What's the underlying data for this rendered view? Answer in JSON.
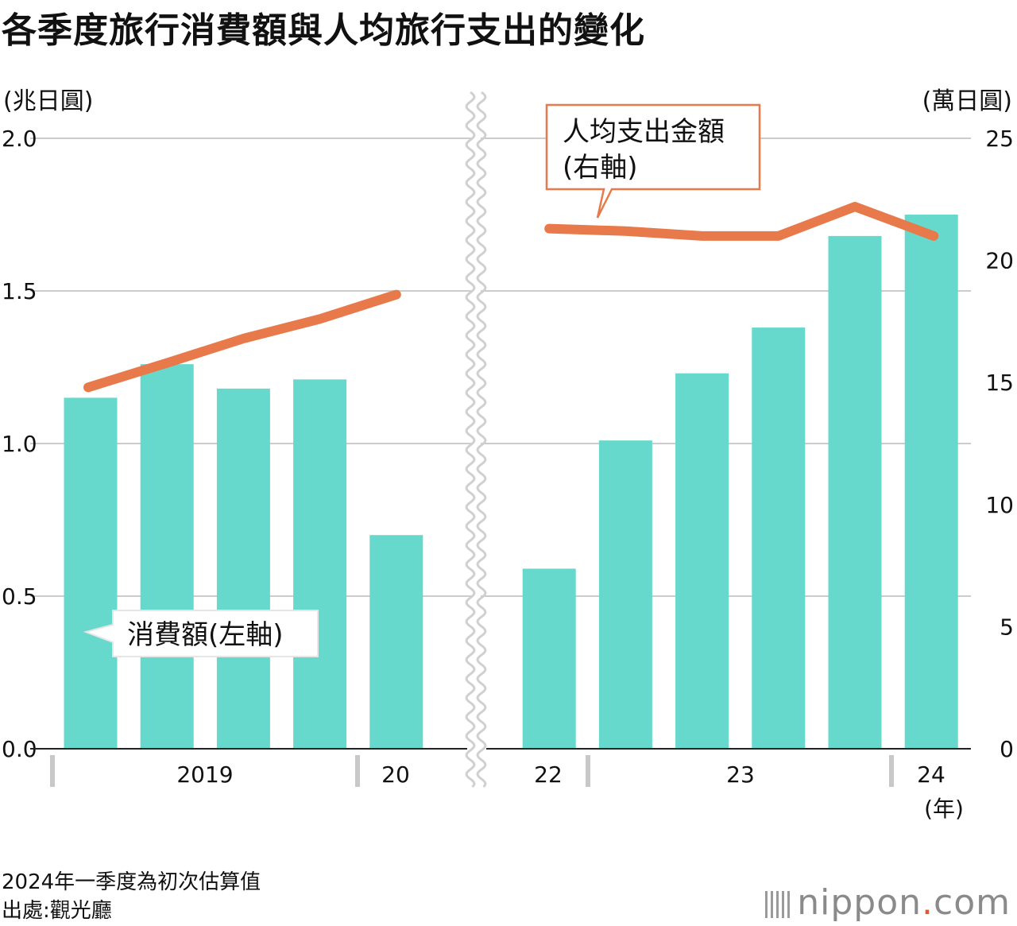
{
  "title": "各季度旅行消費額與人均旅行支出的變化",
  "left_unit": "(兆日圓)",
  "right_unit": "(萬日圓)",
  "year_suffix": "(年)",
  "footnote": "2024年一季度為初次估算值",
  "source": "出處:觀光廳",
  "logo": {
    "main": "nippon",
    "dot": ".",
    "tail": "com"
  },
  "chart_data": {
    "type": "bar",
    "title": "各季度旅行消費額與人均旅行支出的變化",
    "series": [
      {
        "name": "消費額(左軸)",
        "type": "bar",
        "axis": "left",
        "values": [
          1.15,
          1.26,
          1.18,
          1.21,
          0.7,
          null,
          0.59,
          1.01,
          1.23,
          1.38,
          1.68,
          1.75
        ]
      },
      {
        "name": "人均支出金額(右軸)",
        "type": "line",
        "axis": "right",
        "values": [
          14.8,
          15.8,
          16.8,
          17.6,
          18.6,
          null,
          21.3,
          21.2,
          21.0,
          21.0,
          22.2,
          21.0
        ]
      }
    ],
    "categories": [
      "2019 Q1",
      "2019 Q2",
      "2019 Q3",
      "2019 Q4",
      "2020 Q1",
      "",
      "2022 Q4",
      "2023 Q1",
      "2023 Q2",
      "2023 Q3",
      "2023 Q4",
      "2024 Q1"
    ],
    "year_labels": [
      "2019",
      "20",
      "22",
      "23",
      "24"
    ],
    "left_axis": {
      "ticks": [
        "0.0",
        "0.5",
        "1.0",
        "1.5",
        "2.0"
      ],
      "range": [
        0,
        2.0
      ]
    },
    "right_axis": {
      "ticks": [
        "0",
        "5",
        "10",
        "15",
        "20",
        "25"
      ],
      "range": [
        0,
        25
      ]
    },
    "axis_break": "between 2020 and 2022",
    "grid": true,
    "colors": {
      "bar": "#66d9cc",
      "line": "#e8794a",
      "grid": "#cccccc"
    }
  }
}
